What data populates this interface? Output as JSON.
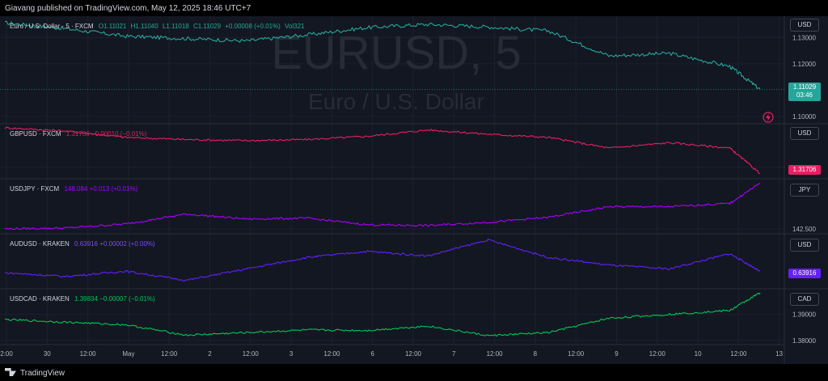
{
  "header": {
    "text": "Giavang published on TradingView.com, May 12, 2025 18:46 UTC+7"
  },
  "footer": {
    "logo_text": "TradingView"
  },
  "watermark": {
    "symbol": "EURUSD, 5",
    "name": "Euro / U.S. Dollar"
  },
  "panes": [
    {
      "id": "eurusd",
      "symbol": "Euro / U.S. Dollar · 5 · FXCM",
      "ohlc": {
        "o": "O1.11021",
        "h": "H1.11040",
        "l": "L1.11018",
        "c": "C1.11029",
        "chg": "+0.00008 (+0.01%)",
        "vol": "Vol321"
      },
      "currency": "USD",
      "ticks": [
        "1.13000",
        "1.12000",
        "1.10000"
      ],
      "last": "1.11029",
      "countdown": "03:46",
      "color": "#26a69a"
    },
    {
      "id": "gbpusd",
      "symbol": "GBPUSD · FXCM",
      "quote": "1.31706  −0.00010 (−0.01%)",
      "currency": "USD",
      "ticks": [
        "1.32000"
      ],
      "last": "1.31706",
      "color": "#e91e63"
    },
    {
      "id": "usdjpy",
      "symbol": "USDJPY · FXCM",
      "quote": "148.084  +0.013 (+0.01%)",
      "currency": "JPY",
      "ticks": [
        "142.500"
      ],
      "last": "",
      "color": "#aa00ff"
    },
    {
      "id": "audusd",
      "symbol": "AUDUSD · KRAKEN",
      "quote": "0.63916  +0.00002 (+0.00%)",
      "currency": "USD",
      "ticks": [],
      "last": "0.63916",
      "color": "#651fff"
    },
    {
      "id": "usdcad",
      "symbol": "USDCAD · KRAKEN",
      "quote": "1.39834  −0.00007 (−0.01%)",
      "currency": "CAD",
      "ticks": [
        "1.39000",
        "1.38000"
      ],
      "last": "",
      "color": "#00c853"
    }
  ],
  "chart_data": {
    "type": "line",
    "title": "EURUSD, 5",
    "x_ticks": [
      "2:00",
      "30",
      "12:00",
      "May",
      "12:00",
      "2",
      "12:00",
      "3",
      "12:00",
      "6",
      "12:00",
      "7",
      "12:00",
      "8",
      "12:00",
      "9",
      "12:00",
      "10",
      "12:00",
      "13"
    ],
    "x": [
      0,
      8,
      16,
      24,
      32,
      40,
      48,
      56,
      64,
      72,
      80,
      88,
      96,
      100
    ],
    "series": [
      {
        "name": "Euro / U.S. Dollar · 5 · FXCM",
        "color": "#26a69a",
        "values": [
          1.1356,
          1.1334,
          1.1305,
          1.1296,
          1.1287,
          1.131,
          1.1338,
          1.135,
          1.134,
          1.1325,
          1.123,
          1.124,
          1.119,
          1.1103
        ]
      },
      {
        "name": "GBPUSD · FXCM",
        "color": "#e91e63",
        "values": [
          1.3385,
          1.337,
          1.334,
          1.333,
          1.3325,
          1.333,
          1.3345,
          1.3375,
          1.3355,
          1.334,
          1.329,
          1.3315,
          1.329,
          1.3171
        ]
      },
      {
        "name": "USDJPY · FXCM",
        "color": "#aa00ff",
        "values": [
          142.5,
          142.6,
          143.1,
          144.3,
          143.7,
          143.8,
          143.0,
          142.9,
          143.3,
          143.9,
          145.2,
          145.2,
          145.6,
          148.08
        ]
      },
      {
        "name": "AUDUSD · KRAKEN",
        "color": "#651fff",
        "values": [
          0.639,
          0.6385,
          0.6392,
          0.638,
          0.6395,
          0.641,
          0.6418,
          0.6412,
          0.6433,
          0.641,
          0.64,
          0.6395,
          0.6415,
          0.6392
        ]
      },
      {
        "name": "USDCAD · KRAKEN",
        "color": "#00c853",
        "values": [
          1.388,
          1.387,
          1.386,
          1.382,
          1.383,
          1.384,
          1.3838,
          1.3855,
          1.3818,
          1.383,
          1.3885,
          1.39,
          1.3915,
          1.3983
        ]
      }
    ]
  }
}
